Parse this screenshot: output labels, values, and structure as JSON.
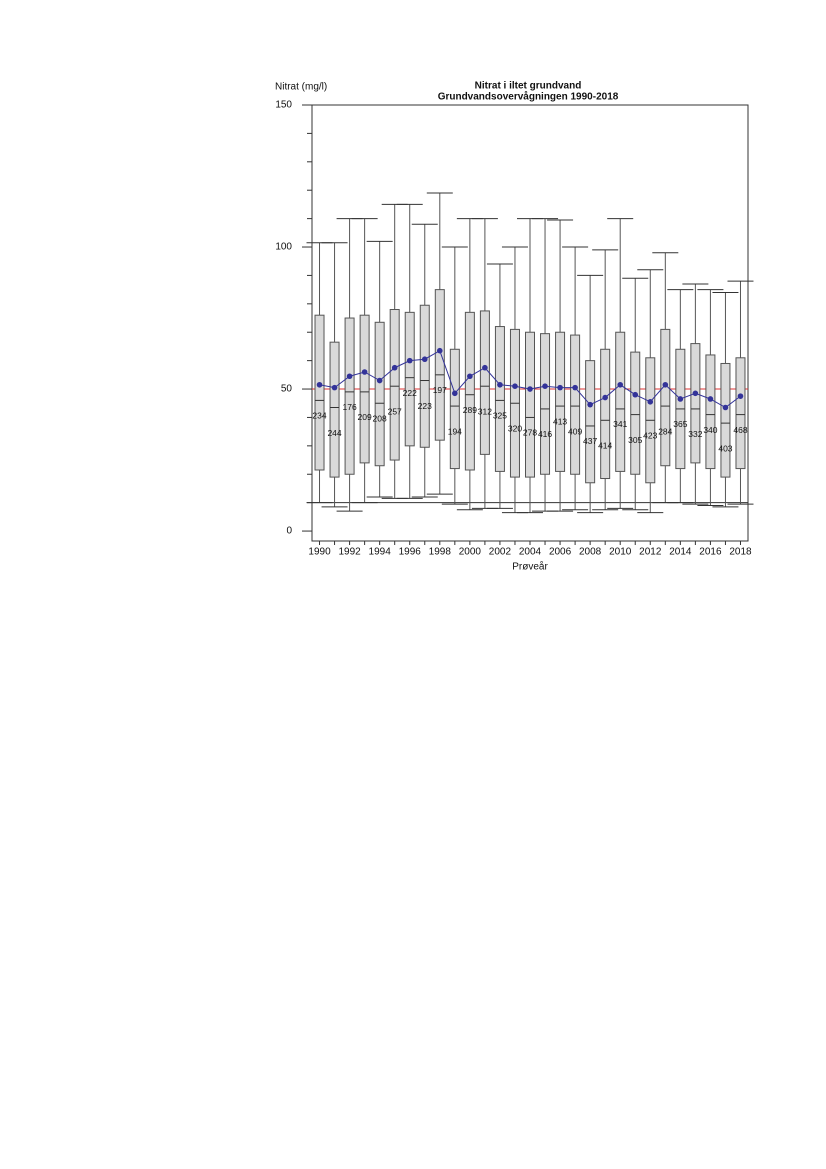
{
  "chart_data": {
    "type": "box",
    "title": "Nitrat i iltet grundvand",
    "subtitle": "Grundvandsovervågningen 1990-2018",
    "y_label": "Nitrat (mg/l)",
    "x_label": "Prøveår",
    "categories": [
      "1990",
      null,
      "1992",
      null,
      "1994",
      null,
      "1996",
      null,
      "1998",
      null,
      "2000",
      null,
      "2002",
      null,
      "2004",
      null,
      "2006",
      null,
      "2008",
      null,
      "2010",
      null,
      "2012",
      null,
      "2014",
      null,
      "2016",
      null,
      "2018"
    ],
    "whisker_high": [
      101.5,
      101.5,
      110,
      110,
      102,
      115,
      115,
      108,
      119,
      100,
      110,
      110,
      94,
      100,
      110,
      110,
      109.5,
      100,
      90,
      99,
      110,
      89,
      92,
      98,
      85,
      87,
      85,
      84,
      88
    ],
    "q3": [
      76,
      66.5,
      75,
      76,
      73.5,
      78,
      77,
      79.5,
      85,
      64,
      77,
      77.5,
      72,
      71,
      70,
      69.5,
      70,
      69,
      60,
      64,
      70,
      63,
      61,
      71,
      64,
      66,
      62,
      59,
      61
    ],
    "median": [
      46,
      43.5,
      49,
      49,
      45,
      51,
      54,
      53,
      55,
      44,
      48,
      51,
      46,
      45,
      40,
      43,
      44,
      44,
      37,
      39,
      43,
      41,
      39,
      44,
      43,
      43,
      41,
      38,
      41
    ],
    "q1": [
      21.5,
      19,
      20,
      24,
      23,
      25,
      30,
      29.5,
      32,
      22,
      21.5,
      27,
      21,
      19,
      19,
      20,
      21,
      20,
      17,
      18.5,
      21,
      20,
      17,
      23,
      22,
      24,
      22,
      19,
      22
    ],
    "whisker_low": [
      10,
      8.5,
      7,
      10,
      12,
      11.5,
      11.5,
      12,
      13,
      9.5,
      7.5,
      8,
      8,
      6.5,
      6.5,
      7,
      7,
      7.5,
      6.5,
      7.5,
      8,
      7.5,
      6.5,
      10,
      10,
      9.5,
      9,
      8.5,
      9.5
    ],
    "mean": {
      "values": [
        51.5,
        50.5,
        54.5,
        56,
        53,
        57.5,
        60,
        60.5,
        63.5,
        48.5,
        54.5,
        57.5,
        51.5,
        51,
        50,
        51,
        50.5,
        50.5,
        44.5,
        47,
        51.5,
        48,
        45.5,
        51.5,
        46.5,
        48.5,
        46.5,
        43.5,
        47.5
      ],
      "color": "#333399"
    },
    "counts": [
      234,
      244,
      176,
      209,
      208,
      257,
      222,
      223,
      197,
      194,
      289,
      312,
      325,
      320,
      278,
      416,
      413,
      409,
      437,
      414,
      341,
      305,
      423,
      284,
      365,
      332,
      340,
      403,
      468
    ],
    "box_color": "#d9d9d9",
    "reference_lines": [
      {
        "value": 50,
        "color": "#e03030"
      },
      {
        "value": 10,
        "color": "#333333"
      }
    ],
    "ylim": [
      -3.5,
      150
    ],
    "yticks": [
      0,
      50,
      100,
      150
    ],
    "minor_yticks": [
      10,
      20,
      30,
      40,
      60,
      70,
      80,
      90,
      110,
      120,
      130,
      140
    ]
  }
}
